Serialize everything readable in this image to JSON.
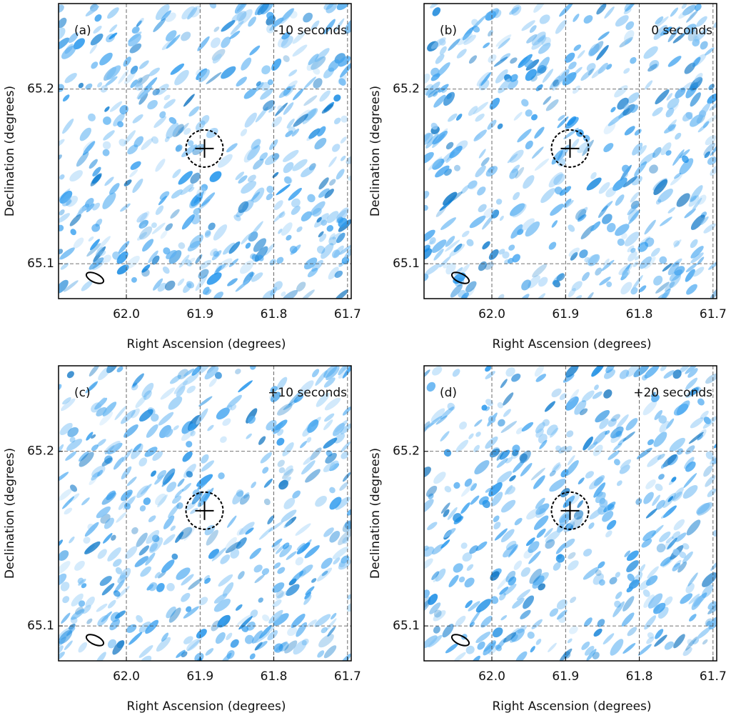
{
  "chart_data": [
    {
      "type": "image",
      "annotation_left": "(a)",
      "annotation_right": "-10 seconds",
      "xlabel": "Right Ascension (degrees)",
      "ylabel": "Declination (degrees)",
      "xlim": [
        62.092,
        61.695
      ],
      "ylim": [
        65.08,
        65.249
      ],
      "xticks": [
        {
          "value": 62,
          "label": "62.0"
        },
        61.9,
        61.8,
        61.7
      ],
      "yticks": [
        65.1,
        65.2
      ],
      "grid": true,
      "source": {
        "x": 61.894,
        "y": 65.166
      }
    },
    {
      "type": "image",
      "annotation_left": "(b)",
      "annotation_right": "0 seconds",
      "xlabel": "Right Ascension (degrees)",
      "ylabel": "Declination (degrees)",
      "xlim": [
        62.092,
        61.695
      ],
      "ylim": [
        65.08,
        65.249
      ],
      "xticks": [
        {
          "value": 62,
          "label": "62.0"
        },
        61.9,
        61.8,
        61.7
      ],
      "yticks": [
        65.1,
        65.2
      ],
      "grid": true,
      "source": {
        "x": 61.894,
        "y": 65.166
      }
    },
    {
      "type": "image",
      "annotation_left": "(c)",
      "annotation_right": "+10 seconds",
      "xlabel": "Right Ascension (degrees)",
      "ylabel": "Declination (degrees)",
      "xlim": [
        62.092,
        61.695
      ],
      "ylim": [
        65.08,
        65.249
      ],
      "xticks": [
        {
          "value": 62,
          "label": "62.0"
        },
        61.9,
        61.8,
        61.7
      ],
      "yticks": [
        65.1,
        65.2
      ],
      "grid": true,
      "source": {
        "x": 61.894,
        "y": 65.166
      }
    },
    {
      "type": "image",
      "annotation_left": "(d)",
      "annotation_right": "+20 seconds",
      "xlabel": "Right Ascension (degrees)",
      "ylabel": "Declination (degrees)",
      "xlim": [
        62.092,
        61.695
      ],
      "ylim": [
        65.08,
        65.249
      ],
      "xticks": [
        {
          "value": 62,
          "label": "62.0"
        },
        61.9,
        61.8,
        61.7
      ],
      "yticks": [
        65.1,
        65.2
      ],
      "grid": true,
      "source": {
        "x": 61.894,
        "y": 65.166
      }
    }
  ]
}
